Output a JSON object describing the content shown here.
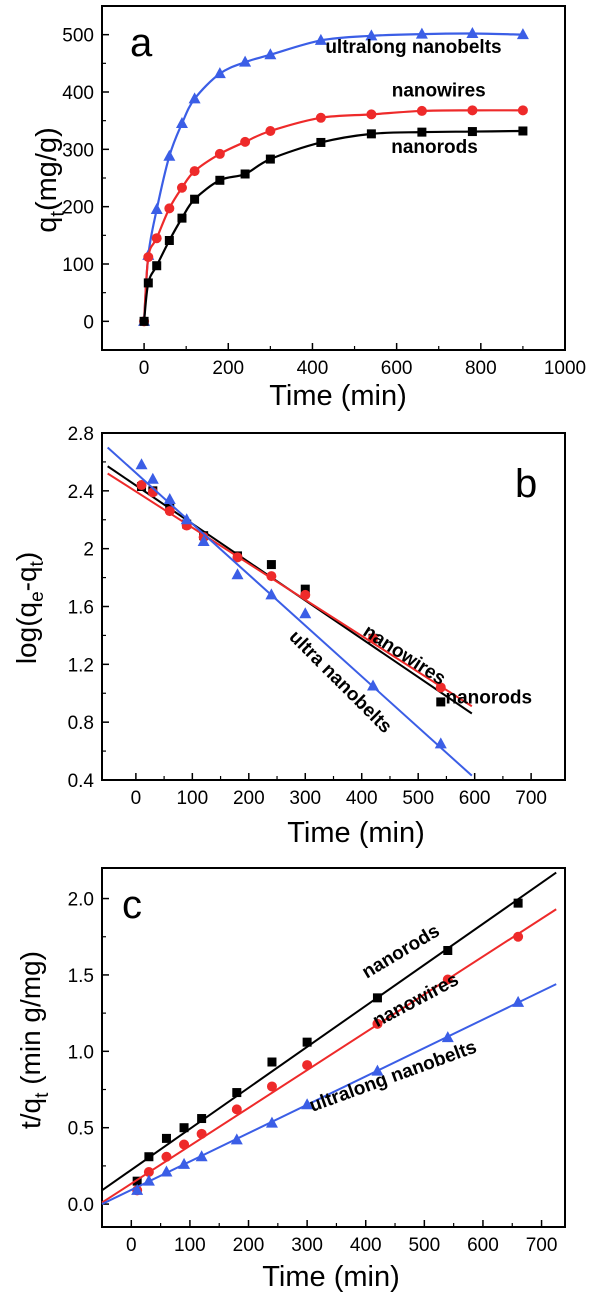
{
  "chart_data": [
    {
      "panel": "a",
      "type": "line",
      "xlabel": "Time (min)",
      "ylabel": {
        "base": "q",
        "sub": "t",
        "rest": "(mg/g)"
      },
      "xlim": [
        -100,
        1000
      ],
      "ylim": [
        -50,
        550
      ],
      "xticks": [
        0,
        200,
        400,
        600,
        800,
        1000
      ],
      "yticks": [
        0,
        100,
        200,
        300,
        400,
        500
      ],
      "series": [
        {
          "name": "ultralong nanobelts",
          "color": "#3b5ee6",
          "marker": "triangle",
          "fit": "smooth",
          "x": [
            0,
            10,
            30,
            60,
            90,
            120,
            180,
            240,
            300,
            420,
            540,
            660,
            780,
            900
          ],
          "y": [
            0,
            115,
            195,
            288,
            345,
            388,
            432,
            452,
            465,
            490,
            498,
            501,
            502,
            500
          ]
        },
        {
          "name": "nanowires",
          "color": "#ee2a2a",
          "marker": "circle",
          "fit": "smooth",
          "x": [
            0,
            10,
            30,
            60,
            90,
            120,
            180,
            240,
            300,
            420,
            540,
            660,
            780,
            900
          ],
          "y": [
            0,
            112,
            145,
            197,
            233,
            262,
            292,
            313,
            332,
            355,
            361,
            367,
            368,
            368
          ]
        },
        {
          "name": "nanorods",
          "color": "#000000",
          "marker": "square",
          "fit": "smooth",
          "x": [
            0,
            10,
            30,
            60,
            90,
            120,
            180,
            240,
            300,
            420,
            540,
            660,
            780,
            900
          ],
          "y": [
            0,
            67,
            97,
            141,
            180,
            213,
            246,
            257,
            283,
            312,
            327,
            330,
            331,
            332
          ]
        }
      ],
      "annotations": [
        {
          "text": "ultralong nanobelts",
          "x": 640,
          "y": 468,
          "rotate": 0
        },
        {
          "text": "nanowires",
          "x": 700,
          "y": 392,
          "rotate": 0
        },
        {
          "text": "nanorods",
          "x": 690,
          "y": 294,
          "rotate": 0
        }
      ]
    },
    {
      "panel": "b",
      "type": "scatter",
      "xlabel": "Time (min)",
      "ylabel": {
        "text": "log(q",
        "sub": "e",
        "mid": "-q",
        "sub2": "t",
        "end": ")"
      },
      "xlim": [
        -60,
        760
      ],
      "ylim": [
        0.4,
        2.8
      ],
      "xticks": [
        0,
        100,
        200,
        300,
        400,
        500,
        600,
        700
      ],
      "yticks": [
        0.4,
        0.8,
        1.2,
        1.6,
        2.0,
        2.4,
        2.8
      ],
      "series": [
        {
          "name": "nanorods",
          "color": "#000000",
          "marker": "square",
          "fit_line": [
            [
              -50,
              2.57
            ],
            [
              595,
              0.86
            ]
          ],
          "x": [
            10,
            30,
            60,
            90,
            120,
            180,
            240,
            300,
            420,
            540
          ],
          "y": [
            2.43,
            2.4,
            2.28,
            2.17,
            2.09,
            1.95,
            1.89,
            1.72,
            1.38,
            0.94
          ]
        },
        {
          "name": "nanowires",
          "color": "#ee2a2a",
          "marker": "circle",
          "fit_line": [
            [
              -50,
              2.52
            ],
            [
              595,
              0.91
            ]
          ],
          "x": [
            10,
            30,
            60,
            90,
            120,
            180,
            240,
            300,
            420,
            540
          ],
          "y": [
            2.44,
            2.39,
            2.26,
            2.16,
            2.08,
            1.94,
            1.81,
            1.68,
            1.38,
            1.04
          ]
        },
        {
          "name": "ultra nanobelts",
          "color": "#3b5ee6",
          "marker": "triangle",
          "fit_line": [
            [
              -50,
              2.7
            ],
            [
              595,
              0.43
            ]
          ],
          "x": [
            10,
            30,
            60,
            90,
            120,
            180,
            240,
            300,
            420,
            540
          ],
          "y": [
            2.58,
            2.48,
            2.34,
            2.2,
            2.05,
            1.82,
            1.68,
            1.55,
            1.05,
            0.65
          ]
        }
      ],
      "annotations": [
        {
          "text": "nanowires",
          "x": 470,
          "y": 1.23,
          "rotate": 33
        },
        {
          "text": "nanorods",
          "x": 625,
          "y": 0.93,
          "rotate": 0
        },
        {
          "text": "ultra nanobelts",
          "x": 355,
          "y": 1.05,
          "rotate": 45
        }
      ]
    },
    {
      "panel": "c",
      "type": "scatter",
      "xlabel": "Time (min)",
      "ylabel": {
        "base": "t/q",
        "sub": "t",
        "rest": " (min g/mg)"
      },
      "xlim": [
        -50,
        740
      ],
      "ylim": [
        -0.15,
        2.2
      ],
      "xticks": [
        0,
        100,
        200,
        300,
        400,
        500,
        600,
        700
      ],
      "yticks": [
        0.0,
        0.5,
        1.0,
        1.5,
        2.0
      ],
      "ytick_labels": [
        "0.0",
        "0.5",
        "1.0",
        "1.5",
        "2.0"
      ],
      "series": [
        {
          "name": "nanorods",
          "color": "#000000",
          "marker": "square",
          "fit_line": [
            [
              -50,
              0.09
            ],
            [
              725,
              2.17
            ]
          ],
          "x": [
            10,
            30,
            60,
            90,
            120,
            180,
            240,
            300,
            420,
            540,
            660
          ],
          "y": [
            0.15,
            0.31,
            0.43,
            0.5,
            0.56,
            0.73,
            0.93,
            1.06,
            1.35,
            1.66,
            1.97
          ]
        },
        {
          "name": "nanowires",
          "color": "#ee2a2a",
          "marker": "circle",
          "fit_line": [
            [
              -50,
              0.01
            ],
            [
              725,
              1.93
            ]
          ],
          "x": [
            10,
            30,
            60,
            90,
            120,
            180,
            240,
            300,
            420,
            540,
            660
          ],
          "y": [
            0.09,
            0.21,
            0.31,
            0.39,
            0.46,
            0.62,
            0.77,
            0.91,
            1.18,
            1.47,
            1.75
          ]
        },
        {
          "name": "ultralong nanobelts",
          "color": "#3b5ee6",
          "marker": "triangle",
          "fit_line": [
            [
              -50,
              0.0
            ],
            [
              725,
              1.44
            ]
          ],
          "x": [
            10,
            30,
            60,
            90,
            120,
            180,
            240,
            300,
            420,
            540,
            660
          ],
          "y": [
            0.09,
            0.15,
            0.21,
            0.26,
            0.31,
            0.42,
            0.53,
            0.65,
            0.87,
            1.09,
            1.32
          ]
        }
      ],
      "annotations": [
        {
          "text": "nanorods",
          "x": 465,
          "y": 1.62,
          "rotate": -31
        },
        {
          "text": "nanowires",
          "x": 490,
          "y": 1.3,
          "rotate": -28
        },
        {
          "text": "ultralong nanobelts",
          "x": 450,
          "y": 0.8,
          "rotate": -20
        }
      ]
    }
  ]
}
